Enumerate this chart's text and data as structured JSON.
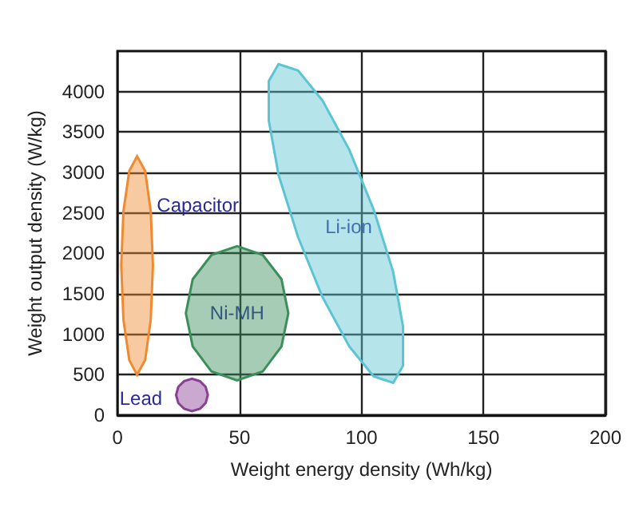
{
  "chart_data": {
    "type": "area",
    "xlabel": "Weight energy density (Wh/kg)",
    "ylabel": "Weight output density (W/kg)",
    "xlim": [
      0,
      200
    ],
    "xticks": [
      0,
      50,
      100,
      150,
      200
    ],
    "ylim": [
      0,
      4500
    ],
    "yticks": [
      0,
      500,
      1000,
      1500,
      2000,
      2500,
      3000,
      3500,
      4000
    ],
    "grid": true,
    "legend": false,
    "series": [
      {
        "name": "Capacitor",
        "color": "#f08a30",
        "x": [
          14.5,
          13.6,
          11.3,
          8,
          4.8,
          2.4,
          1.5,
          2.4,
          4.8,
          8,
          11.3,
          13.6
        ],
        "values": [
          1850,
          2520,
          3020,
          3200,
          3020,
          2520,
          1850,
          1180,
          680,
          500,
          680,
          1180
        ]
      },
      {
        "name": "Ni-MH",
        "color": "#3a8f5a",
        "x": [
          70,
          67.2,
          59.5,
          49,
          38.5,
          30.8,
          28,
          30.8,
          38.5,
          49,
          59.5,
          67.2
        ],
        "values": [
          1260,
          1680,
          1980,
          2090,
          1980,
          1680,
          1260,
          850,
          540,
          430,
          540,
          850
        ]
      },
      {
        "name": "Li-ion",
        "color": "#5cc4d2",
        "x": [
          113,
          117,
          117,
          113,
          105,
          95,
          84,
          74,
          66,
          62,
          62,
          66,
          74,
          84,
          95,
          105
        ],
        "values": [
          400,
          610,
          1100,
          1770,
          2540,
          3280,
          3890,
          4260,
          4340,
          4130,
          3640,
          2970,
          2200,
          1460,
          850,
          480
        ]
      },
      {
        "name": "Lead",
        "color": "#8a3f95",
        "x": [
          37,
          36.1,
          33.8,
          30.5,
          27.3,
          24.9,
          24,
          24.9,
          27.3,
          30.5,
          33.8,
          36.1
        ],
        "values": [
          250,
          350,
          420,
          450,
          420,
          350,
          250,
          150,
          80,
          50,
          80,
          150
        ]
      }
    ]
  }
}
